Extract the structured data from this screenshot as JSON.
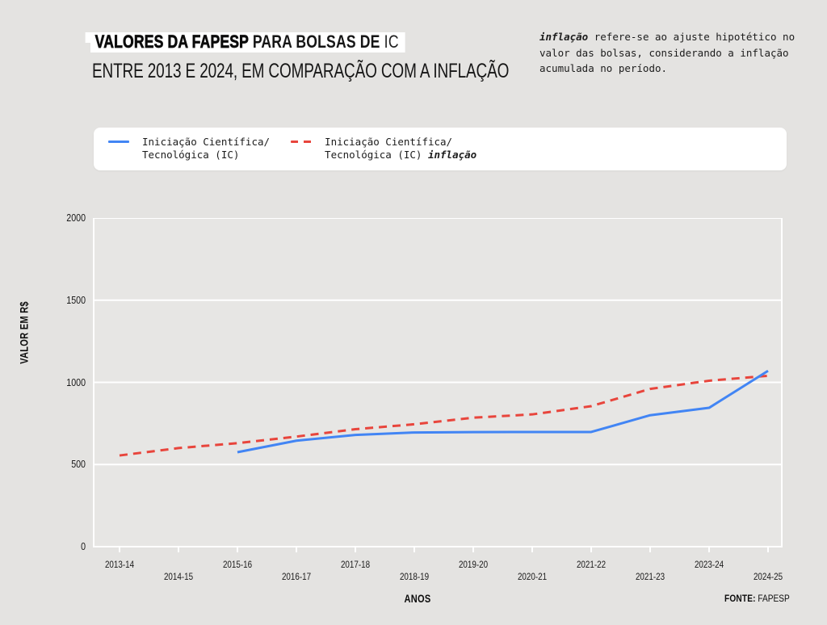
{
  "header": {
    "title": {
      "part1": "VALORES DA FAPESP",
      "part2": " PARA BOLSAS DE ",
      "part3": "IC",
      "line2": "ENTRE 2013 E 2024, EM COMPARAÇÃO COM A INFLAÇÃO"
    },
    "note": {
      "term": "inflação",
      "rest": " refere-se ao ajuste hipotético no valor das bolsas, considerando a inflação acumulada no período."
    }
  },
  "legend": {
    "items": [
      {
        "line1": "Iniciação Científica/",
        "line2": "Tecnológica (IC)",
        "emphasis": "",
        "color": "#4285f4",
        "dash": "solid"
      },
      {
        "line1": "Iniciação Científica/",
        "line2": "Tecnológica (IC) ",
        "emphasis": "inflação",
        "color": "#e8453c",
        "dash": "dashed"
      }
    ]
  },
  "chart_data": {
    "type": "line",
    "title": "Valores da FAPESP para bolsas de IC entre 2013 e 2024, em comparação com a inflação",
    "categories": [
      "2013-14",
      "2014-15",
      "2015-16",
      "2016-17",
      "2017-18",
      "2018-19",
      "2019-20",
      "2020-21",
      "2021-22",
      "2021-23",
      "2023-24",
      "2024-25"
    ],
    "series": [
      {
        "name": "Iniciação Científica/Tecnológica (IC)",
        "color": "#4285f4",
        "style": "solid",
        "values": [
          null,
          null,
          575,
          645,
          680,
          695,
          697,
          698,
          698,
          800,
          845,
          1070
        ]
      },
      {
        "name": "Iniciação Científica/Tecnológica (IC) inflação",
        "color": "#e8453c",
        "style": "dashed",
        "values": [
          555,
          600,
          630,
          670,
          715,
          745,
          785,
          805,
          855,
          960,
          1010,
          1040
        ]
      }
    ],
    "xlabel": "ANOS",
    "ylabel": "VALOR EM R$",
    "yticks": [
      0,
      500,
      1000,
      1500,
      2000
    ],
    "ylim": [
      0,
      2000
    ],
    "grid": "horizontal",
    "legend_position": "top",
    "plot_bg": "#e7e6e4",
    "grid_color": "#ffffff"
  },
  "footer": {
    "source_label": "FONTE:",
    "source_value": "FAPESP"
  }
}
